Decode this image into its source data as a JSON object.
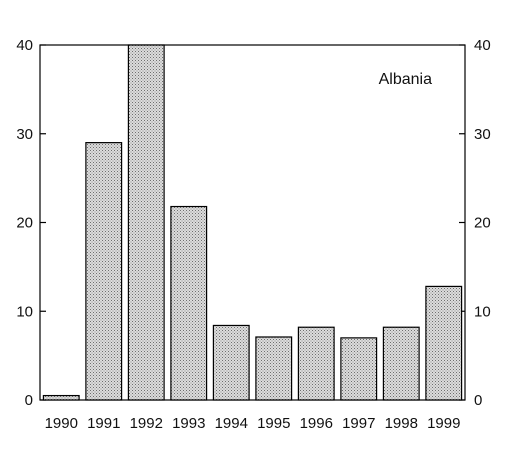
{
  "chart_data": {
    "type": "bar",
    "title": "",
    "xlabel": "",
    "ylabel": "",
    "annotation": "Albania",
    "categories": [
      "1990",
      "1991",
      "1992",
      "1993",
      "1994",
      "1995",
      "1996",
      "1997",
      "1998",
      "1999"
    ],
    "values": [
      0.5,
      29,
      40,
      21.8,
      8.4,
      7.1,
      8.2,
      7.0,
      8.2,
      12.8
    ],
    "ylim": [
      0,
      40
    ],
    "yticks": [
      0,
      10,
      20,
      30,
      40
    ],
    "right_axis_ticks": true,
    "grid": false,
    "legend": "none",
    "colors": {
      "bar_fill": "#c8c8c8",
      "bar_stroke": "#000000",
      "axis": "#000000"
    }
  }
}
